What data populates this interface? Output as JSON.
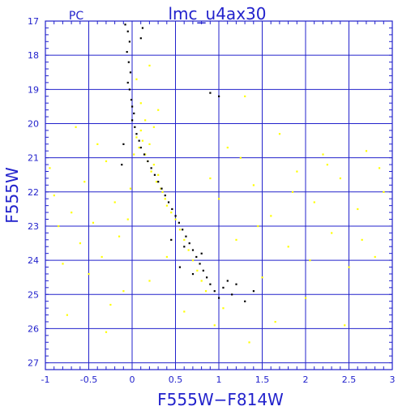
{
  "chart_data": {
    "type": "scatter",
    "title": "lmc_u4ax30",
    "corner_label": "PC",
    "xlabel": "F555W−F814W",
    "ylabel": "F555W",
    "xlim": [
      -1,
      3
    ],
    "ylim": [
      27.2,
      17
    ],
    "y_inverted": true,
    "grid": true,
    "x_ticks": [
      -1,
      -0.5,
      0,
      0.5,
      1,
      1.5,
      2,
      2.5,
      3
    ],
    "x_tick_labels": [
      "-1",
      "-0.5",
      "0",
      "0.5",
      "1",
      "1.5",
      "2",
      "2.5",
      "3"
    ],
    "y_ticks": [
      17,
      18,
      19,
      20,
      21,
      22,
      23,
      24,
      25,
      26,
      27
    ],
    "y_tick_labels": [
      "17",
      "18",
      "19",
      "20",
      "21",
      "22",
      "23",
      "24",
      "25",
      "26",
      "27"
    ],
    "colors": {
      "axes": "#2222cc",
      "grid": "#2222cc",
      "field": "#ffff00",
      "cluster": "#000000"
    },
    "series": [
      {
        "color": "#ffff00",
        "points": [
          [
            -0.95,
            21.3
          ],
          [
            -0.9,
            22.1
          ],
          [
            -0.85,
            23.0
          ],
          [
            -0.8,
            24.1
          ],
          [
            -0.75,
            25.6
          ],
          [
            -0.7,
            22.6
          ],
          [
            -0.65,
            20.1
          ],
          [
            -0.6,
            23.5
          ],
          [
            -0.55,
            21.7
          ],
          [
            -0.5,
            24.4
          ],
          [
            -0.45,
            22.9
          ],
          [
            -0.4,
            20.6
          ],
          [
            -0.35,
            23.9
          ],
          [
            -0.3,
            21.1
          ],
          [
            -0.25,
            25.3
          ],
          [
            -0.2,
            22.3
          ],
          [
            -0.15,
            23.3
          ],
          [
            -0.1,
            24.9
          ],
          [
            -0.05,
            22.8
          ],
          [
            -0.02,
            21.9
          ],
          [
            0.02,
            20.9
          ],
          [
            0.05,
            20.4
          ],
          [
            0.08,
            20.7
          ],
          [
            0.1,
            20.2
          ],
          [
            0.12,
            20.5
          ],
          [
            0.15,
            20.9
          ],
          [
            0.18,
            21.1
          ],
          [
            0.2,
            20.6
          ],
          [
            0.22,
            21.4
          ],
          [
            0.25,
            21.2
          ],
          [
            0.28,
            21.7
          ],
          [
            0.3,
            21.5
          ],
          [
            0.33,
            21.9
          ],
          [
            0.35,
            22.0
          ],
          [
            0.38,
            22.2
          ],
          [
            0.4,
            22.4
          ],
          [
            0.45,
            22.6
          ],
          [
            0.5,
            22.8
          ],
          [
            0.55,
            23.1
          ],
          [
            0.6,
            23.4
          ],
          [
            0.65,
            23.7
          ],
          [
            0.7,
            24.0
          ],
          [
            0.75,
            24.3
          ],
          [
            0.8,
            24.6
          ],
          [
            0.85,
            24.9
          ],
          [
            0.05,
            18.7
          ],
          [
            0.1,
            19.4
          ],
          [
            0.15,
            19.9
          ],
          [
            0.2,
            18.3
          ],
          [
            0.25,
            20.1
          ],
          [
            0.3,
            19.6
          ],
          [
            0.9,
            21.6
          ],
          [
            1.0,
            22.2
          ],
          [
            1.1,
            20.7
          ],
          [
            1.2,
            23.4
          ],
          [
            1.3,
            19.2
          ],
          [
            1.4,
            21.8
          ],
          [
            1.5,
            24.5
          ],
          [
            1.6,
            22.7
          ],
          [
            1.7,
            20.3
          ],
          [
            1.8,
            23.6
          ],
          [
            1.9,
            21.4
          ],
          [
            2.0,
            25.1
          ],
          [
            2.1,
            22.3
          ],
          [
            2.2,
            20.9
          ],
          [
            2.3,
            23.2
          ],
          [
            2.4,
            21.6
          ],
          [
            2.5,
            24.2
          ],
          [
            2.6,
            22.5
          ],
          [
            2.7,
            20.8
          ],
          [
            2.8,
            23.9
          ],
          [
            2.9,
            22.0
          ],
          [
            1.05,
            25.4
          ],
          [
            1.25,
            21.0
          ],
          [
            1.45,
            23.0
          ],
          [
            1.65,
            25.8
          ],
          [
            1.85,
            22.0
          ],
          [
            2.05,
            24.0
          ],
          [
            2.25,
            21.2
          ],
          [
            2.45,
            25.9
          ],
          [
            2.65,
            23.4
          ],
          [
            2.85,
            21.3
          ],
          [
            0.6,
            25.5
          ],
          [
            0.4,
            23.9
          ],
          [
            0.2,
            24.6
          ],
          [
            -0.3,
            26.1
          ],
          [
            1.35,
            26.4
          ],
          [
            0.95,
            25.9
          ]
        ]
      },
      {
        "color": "#000000",
        "points": [
          [
            -0.08,
            17.1
          ],
          [
            -0.05,
            17.3
          ],
          [
            -0.03,
            17.6
          ],
          [
            -0.06,
            17.9
          ],
          [
            -0.04,
            18.2
          ],
          [
            -0.02,
            18.5
          ],
          [
            -0.05,
            18.8
          ],
          [
            -0.03,
            19.0
          ],
          [
            -0.01,
            19.3
          ],
          [
            0.0,
            19.5
          ],
          [
            0.02,
            19.7
          ],
          [
            0.0,
            19.9
          ],
          [
            0.03,
            20.1
          ],
          [
            0.05,
            20.3
          ],
          [
            0.08,
            20.5
          ],
          [
            0.1,
            20.7
          ],
          [
            0.14,
            20.9
          ],
          [
            0.18,
            21.1
          ],
          [
            0.22,
            21.3
          ],
          [
            0.26,
            21.5
          ],
          [
            0.3,
            21.7
          ],
          [
            0.34,
            21.9
          ],
          [
            0.38,
            22.1
          ],
          [
            0.42,
            22.3
          ],
          [
            0.46,
            22.5
          ],
          [
            0.5,
            22.7
          ],
          [
            0.54,
            22.9
          ],
          [
            0.58,
            23.1
          ],
          [
            0.62,
            23.3
          ],
          [
            0.66,
            23.5
          ],
          [
            0.7,
            23.7
          ],
          [
            0.74,
            23.9
          ],
          [
            0.78,
            24.1
          ],
          [
            0.82,
            24.3
          ],
          [
            0.86,
            24.5
          ],
          [
            0.9,
            24.7
          ],
          [
            0.95,
            24.9
          ],
          [
            1.0,
            25.1
          ],
          [
            1.05,
            24.8
          ],
          [
            1.1,
            24.6
          ],
          [
            1.15,
            25.0
          ],
          [
            1.2,
            24.7
          ],
          [
            1.3,
            25.2
          ],
          [
            0.12,
            17.2
          ],
          [
            0.1,
            17.5
          ],
          [
            0.9,
            19.1
          ],
          [
            1.0,
            19.2
          ],
          [
            0.6,
            23.6
          ],
          [
            0.7,
            24.4
          ],
          [
            0.55,
            24.2
          ],
          [
            0.45,
            23.4
          ],
          [
            0.8,
            23.8
          ],
          [
            -0.1,
            20.6
          ],
          [
            -0.12,
            21.2
          ],
          [
            1.4,
            24.9
          ]
        ]
      }
    ]
  }
}
